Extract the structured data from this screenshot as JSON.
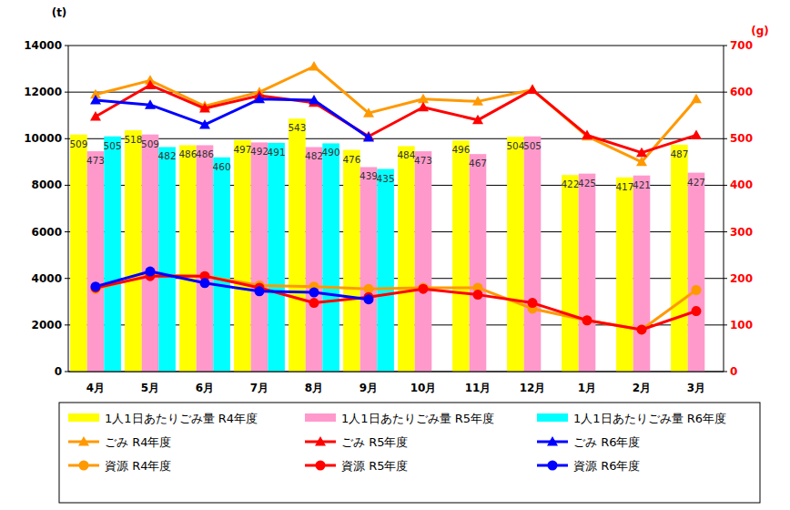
{
  "chart_data": {
    "type": "bar",
    "y_label": "(t)",
    "y2_label": "(g)",
    "categories": [
      "4月",
      "5月",
      "6月",
      "7月",
      "8月",
      "9月",
      "10月",
      "11月",
      "12月",
      "1月",
      "2月",
      "3月"
    ],
    "ylim": [
      0,
      14000
    ],
    "yticks": [
      0,
      2000,
      4000,
      6000,
      8000,
      10000,
      12000,
      14000
    ],
    "y2lim": [
      0,
      700
    ],
    "y2ticks": [
      0,
      100,
      200,
      300,
      400,
      500,
      600,
      700
    ],
    "grid": true,
    "legend": "bottom",
    "series": [
      {
        "name": "1人1日あたりごみ量 R4年度",
        "type": "bar",
        "axis": "y2",
        "color": "#ffff00",
        "data_labels": true,
        "values": [
          509,
          518,
          486,
          497,
          543,
          476,
          484,
          496,
          504,
          422,
          417,
          487
        ]
      },
      {
        "name": "1人1日あたりごみ量 R5年度",
        "type": "bar",
        "axis": "y2",
        "color": "#ff99cc",
        "data_labels": true,
        "values": [
          473,
          509,
          486,
          492,
          482,
          439,
          473,
          467,
          505,
          425,
          421,
          427
        ]
      },
      {
        "name": "1人1日あたりごみ量 R6年度",
        "type": "bar",
        "axis": "y2",
        "color": "#00ffff",
        "data_labels": true,
        "values": [
          505,
          482,
          460,
          491,
          490,
          435,
          null,
          null,
          null,
          null,
          null,
          null
        ]
      },
      {
        "name": "ごみ R4年度",
        "type": "line",
        "color": "#ff9900",
        "marker": "triangle",
        "values": [
          11900,
          12500,
          11400,
          12000,
          13100,
          11100,
          11700,
          11600,
          12100,
          10100,
          9000,
          11700
        ]
      },
      {
        "name": "ごみ R5年度",
        "type": "line",
        "color": "#ff0000",
        "marker": "triangle",
        "values": [
          10950,
          12300,
          11300,
          11850,
          11550,
          10100,
          11350,
          10800,
          12100,
          10150,
          9400,
          10150
        ]
      },
      {
        "name": "ごみ R6年度",
        "type": "line",
        "color": "#0000ff",
        "marker": "triangle",
        "values": [
          11650,
          11450,
          10600,
          11700,
          11650,
          10050,
          null,
          null,
          null,
          null,
          null,
          null
        ]
      },
      {
        "name": "資源 R4年度",
        "type": "line",
        "color": "#ff9900",
        "marker": "circle",
        "values": [
          3550,
          4150,
          4100,
          3700,
          3650,
          3550,
          3600,
          3600,
          2700,
          2200,
          1800,
          3500
        ]
      },
      {
        "name": "資源 R5年度",
        "type": "line",
        "color": "#ff0000",
        "marker": "circle",
        "values": [
          3600,
          4100,
          4100,
          3600,
          2950,
          3200,
          3550,
          3300,
          2950,
          2200,
          1800,
          2600
        ]
      },
      {
        "name": "資源 R6年度",
        "type": "line",
        "color": "#0000ff",
        "marker": "circle",
        "values": [
          3650,
          4300,
          3800,
          3450,
          3400,
          3100,
          null,
          null,
          null,
          null,
          null,
          null
        ]
      }
    ]
  }
}
